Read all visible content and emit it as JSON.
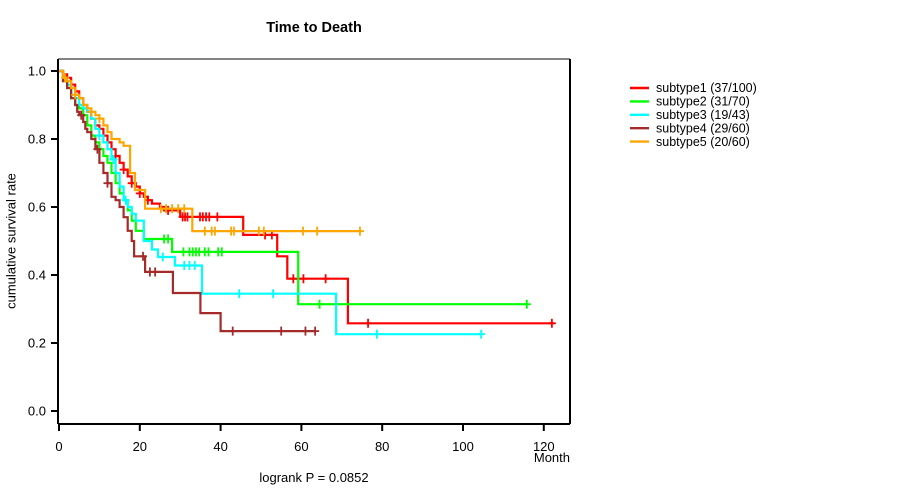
{
  "chart_data": {
    "type": "line",
    "variant": "kaplan-meier-step",
    "title": "Time to Death",
    "xlabel": "Month",
    "ylabel": "cumulative survival rate",
    "footnote": "logrank P = 0.0852",
    "xticks": [
      0,
      20,
      40,
      60,
      80,
      100,
      120
    ],
    "ytick_labels": [
      "0.0",
      "0.2",
      "0.4",
      "0.6",
      "0.8",
      "1.0"
    ],
    "xlim": [
      0,
      126
    ],
    "ylim": [
      0,
      1
    ],
    "grid": "off",
    "legend_position": "right-outside",
    "series": [
      {
        "id": "subtype1",
        "name": "subtype1 (37/100)",
        "color": "#FF0000",
        "steps": [
          [
            0,
            1.0
          ],
          [
            1,
            0.99
          ],
          [
            2,
            0.98
          ],
          [
            3,
            0.96
          ],
          [
            4,
            0.94
          ],
          [
            5,
            0.92
          ],
          [
            6,
            0.9
          ],
          [
            7,
            0.88
          ],
          [
            8,
            0.86
          ],
          [
            9,
            0.84
          ],
          [
            10,
            0.83
          ],
          [
            11,
            0.81
          ],
          [
            12,
            0.79
          ],
          [
            13,
            0.77
          ],
          [
            14,
            0.75
          ],
          [
            15,
            0.73
          ],
          [
            16,
            0.71
          ],
          [
            17,
            0.69
          ],
          [
            18,
            0.67
          ],
          [
            19,
            0.66
          ],
          [
            20,
            0.64
          ],
          [
            21,
            0.63
          ],
          [
            22,
            0.62
          ],
          [
            23,
            0.61
          ],
          [
            25,
            0.6
          ],
          [
            26,
            0.59
          ],
          [
            30,
            0.571
          ],
          [
            45.6,
            0.518
          ],
          [
            54,
            0.455
          ],
          [
            56.5,
            0.389
          ],
          [
            71.5,
            0.258
          ]
        ],
        "end": 122.5,
        "censors": [
          [
            14,
            0.75
          ],
          [
            16,
            0.71
          ],
          [
            18,
            0.67
          ],
          [
            20,
            0.64
          ],
          [
            22,
            0.62
          ],
          [
            27,
            0.59
          ],
          [
            30.6,
            0.571
          ],
          [
            31.2,
            0.571
          ],
          [
            31.8,
            0.571
          ],
          [
            34.9,
            0.571
          ],
          [
            35.6,
            0.571
          ],
          [
            36.4,
            0.571
          ],
          [
            37.2,
            0.571
          ],
          [
            39.2,
            0.571
          ],
          [
            51,
            0.518
          ],
          [
            52.7,
            0.518
          ],
          [
            58,
            0.389
          ],
          [
            60.5,
            0.389
          ],
          [
            66,
            0.389
          ],
          [
            76.5,
            0.258
          ],
          [
            122,
            0.258
          ]
        ]
      },
      {
        "id": "subtype2",
        "name": "subtype2 (31/70)",
        "color": "#00FF00",
        "steps": [
          [
            0,
            1.0
          ],
          [
            1,
            0.97
          ],
          [
            2,
            0.95
          ],
          [
            3,
            0.92
          ],
          [
            4,
            0.9
          ],
          [
            5,
            0.89
          ],
          [
            6,
            0.87
          ],
          [
            7,
            0.84
          ],
          [
            8,
            0.81
          ],
          [
            9,
            0.79
          ],
          [
            10,
            0.77
          ],
          [
            11,
            0.75
          ],
          [
            12,
            0.73
          ],
          [
            13,
            0.7
          ],
          [
            14,
            0.67
          ],
          [
            15,
            0.64
          ],
          [
            16,
            0.62
          ],
          [
            17,
            0.59
          ],
          [
            18,
            0.56
          ],
          [
            19,
            0.53
          ],
          [
            21,
            0.506
          ],
          [
            28,
            0.468
          ],
          [
            59.2,
            0.314
          ]
        ],
        "end": 116,
        "censors": [
          [
            26,
            0.506
          ],
          [
            27,
            0.506
          ],
          [
            30.8,
            0.468
          ],
          [
            32.3,
            0.468
          ],
          [
            33.1,
            0.468
          ],
          [
            33.9,
            0.468
          ],
          [
            34.7,
            0.468
          ],
          [
            36.1,
            0.468
          ],
          [
            37,
            0.468
          ],
          [
            39.4,
            0.468
          ],
          [
            40.3,
            0.468
          ],
          [
            64.5,
            0.314
          ],
          [
            115.8,
            0.314
          ]
        ]
      },
      {
        "id": "subtype3",
        "name": "subtype3 (19/43)",
        "color": "#00FFFF",
        "steps": [
          [
            0,
            1.0
          ],
          [
            1,
            0.98
          ],
          [
            2,
            0.96
          ],
          [
            3,
            0.93
          ],
          [
            4,
            0.92
          ],
          [
            5,
            0.9
          ],
          [
            6,
            0.89
          ],
          [
            7,
            0.88
          ],
          [
            8,
            0.86
          ],
          [
            9,
            0.83
          ],
          [
            10,
            0.81
          ],
          [
            11,
            0.79
          ],
          [
            12,
            0.77
          ],
          [
            13,
            0.74
          ],
          [
            14,
            0.7
          ],
          [
            15,
            0.66
          ],
          [
            16,
            0.62
          ],
          [
            17,
            0.6
          ],
          [
            18,
            0.58
          ],
          [
            19,
            0.56
          ],
          [
            21,
            0.5
          ],
          [
            23,
            0.475
          ],
          [
            24.5,
            0.453
          ],
          [
            28.7,
            0.428
          ],
          [
            35.4,
            0.345
          ],
          [
            68.6,
            0.226
          ]
        ],
        "end": 105,
        "censors": [
          [
            10,
            0.81
          ],
          [
            13.5,
            0.74
          ],
          [
            16.5,
            0.62
          ],
          [
            25.7,
            0.453
          ],
          [
            31,
            0.428
          ],
          [
            32.3,
            0.428
          ],
          [
            33.6,
            0.428
          ],
          [
            44.6,
            0.345
          ],
          [
            53,
            0.345
          ],
          [
            78.7,
            0.226
          ],
          [
            104.5,
            0.226
          ]
        ]
      },
      {
        "id": "subtype4",
        "name": "subtype4 (29/60)",
        "color": "#A52A2A",
        "steps": [
          [
            0,
            1.0
          ],
          [
            1,
            0.97
          ],
          [
            2,
            0.95
          ],
          [
            3,
            0.92
          ],
          [
            4,
            0.9
          ],
          [
            4.5,
            0.88
          ],
          [
            5,
            0.87
          ],
          [
            6,
            0.85
          ],
          [
            6.5,
            0.83
          ],
          [
            7,
            0.82
          ],
          [
            8,
            0.8
          ],
          [
            9,
            0.77
          ],
          [
            10,
            0.73
          ],
          [
            11,
            0.7
          ],
          [
            12,
            0.67
          ],
          [
            13,
            0.63
          ],
          [
            14,
            0.62
          ],
          [
            15,
            0.6
          ],
          [
            16,
            0.57
          ],
          [
            17,
            0.53
          ],
          [
            18,
            0.5
          ],
          [
            18.6,
            0.455
          ],
          [
            21.3,
            0.409
          ],
          [
            28.2,
            0.347
          ],
          [
            35,
            0.288
          ],
          [
            40,
            0.235
          ]
        ],
        "end": 63.5,
        "censors": [
          [
            5.5,
            0.87
          ],
          [
            9.5,
            0.77
          ],
          [
            12,
            0.67
          ],
          [
            20.8,
            0.455
          ],
          [
            22.5,
            0.409
          ],
          [
            23.8,
            0.409
          ],
          [
            43,
            0.235
          ],
          [
            55,
            0.235
          ],
          [
            61,
            0.235
          ],
          [
            63.4,
            0.235
          ]
        ]
      },
      {
        "id": "subtype5",
        "name": "subtype5 (20/60)",
        "color": "#FFA500",
        "steps": [
          [
            0,
            1.0
          ],
          [
            1,
            0.98
          ],
          [
            2,
            0.97
          ],
          [
            3,
            0.95
          ],
          [
            4,
            0.93
          ],
          [
            5,
            0.92
          ],
          [
            6,
            0.9
          ],
          [
            7,
            0.89
          ],
          [
            8,
            0.88
          ],
          [
            9,
            0.87
          ],
          [
            10,
            0.86
          ],
          [
            11,
            0.84
          ],
          [
            12,
            0.82
          ],
          [
            13,
            0.8
          ],
          [
            15,
            0.79
          ],
          [
            16,
            0.78
          ],
          [
            17.6,
            0.7
          ],
          [
            18.8,
            0.65
          ],
          [
            21.3,
            0.595
          ],
          [
            33,
            0.529
          ]
        ],
        "end": 74.8,
        "censors": [
          [
            1.5,
            0.98
          ],
          [
            4,
            0.93
          ],
          [
            8,
            0.88
          ],
          [
            10,
            0.86
          ],
          [
            25.2,
            0.595
          ],
          [
            26.5,
            0.595
          ],
          [
            28,
            0.595
          ],
          [
            29.5,
            0.595
          ],
          [
            31,
            0.595
          ],
          [
            36.1,
            0.529
          ],
          [
            37.8,
            0.529
          ],
          [
            38.6,
            0.529
          ],
          [
            42.6,
            0.529
          ],
          [
            43.3,
            0.529
          ],
          [
            49.5,
            0.529
          ],
          [
            50.7,
            0.529
          ],
          [
            60.4,
            0.529
          ],
          [
            63.9,
            0.529
          ],
          [
            74.5,
            0.529
          ]
        ]
      }
    ],
    "box_colors": {
      "top": "#848484",
      "right": "#000000",
      "bottom": "#000000",
      "left": "#000000"
    }
  }
}
